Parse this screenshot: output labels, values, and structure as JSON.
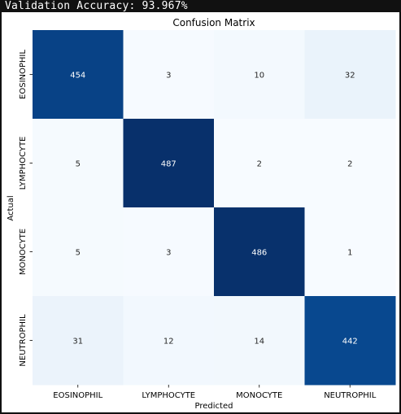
{
  "console": {
    "text": "Validation Accuracy: 93.967%"
  },
  "chart_data": {
    "type": "heatmap",
    "title": "Confusion Matrix",
    "xlabel": "Predicted",
    "ylabel": "Actual",
    "x_categories": [
      "EOSINOPHIL",
      "LYMPHOCYTE",
      "MONOCYTE",
      "NEUTROPHIL"
    ],
    "y_categories": [
      "EOSINOPHIL",
      "LYMPHOCYTE",
      "MONOCYTE",
      "NEUTROPHIL"
    ],
    "values": [
      [
        454,
        3,
        10,
        32
      ],
      [
        5,
        487,
        2,
        2
      ],
      [
        5,
        3,
        486,
        1
      ],
      [
        31,
        12,
        14,
        442
      ]
    ],
    "colormap": "Blues",
    "colorbar": false,
    "annotations": true
  }
}
